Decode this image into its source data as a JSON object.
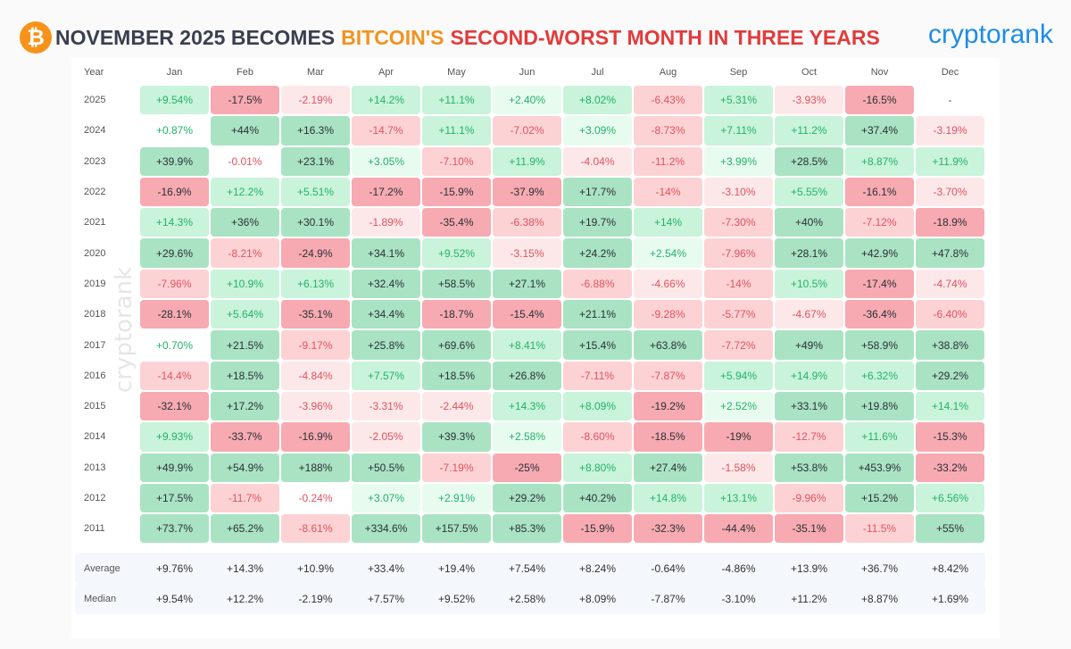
{
  "header": {
    "title_part1": "NOVEMBER 2025 BECOMES",
    "title_part2": "BITCOIN'S",
    "title_part3": "SECOND-WORST MONTH IN THREE YEARS",
    "logo": "cryptorank",
    "watermark": "cryptorank",
    "btc_symbol": "₿"
  },
  "colors": {
    "green": "#22b36a",
    "red": "#e2525e",
    "strong_green": "#a9e3c3",
    "strong_red": "#f7aab1"
  },
  "chart_data": {
    "type": "heatmap",
    "title": "NOVEMBER 2025 BECOMES BITCOIN'S SECOND-WORST MONTH IN THREE YEARS",
    "year_header": "Year",
    "months": [
      "Jan",
      "Feb",
      "Mar",
      "Apr",
      "May",
      "Jun",
      "Jul",
      "Aug",
      "Sep",
      "Oct",
      "Nov",
      "Dec"
    ],
    "rows": [
      {
        "year": "2025",
        "values": [
          "+9.54%",
          "-17.5%",
          "-2.19%",
          "+14.2%",
          "+11.1%",
          "+2.40%",
          "+8.02%",
          "-6.43%",
          "+5.31%",
          "-3.93%",
          "-16.5%",
          "-"
        ]
      },
      {
        "year": "2024",
        "values": [
          "+0.87%",
          "+44%",
          "+16.3%",
          "-14.7%",
          "+11.1%",
          "-7.02%",
          "+3.09%",
          "-8.73%",
          "+7.11%",
          "+11.2%",
          "+37.4%",
          "-3.19%"
        ]
      },
      {
        "year": "2023",
        "values": [
          "+39.9%",
          "-0.01%",
          "+23.1%",
          "+3.05%",
          "-7.10%",
          "+11.9%",
          "-4.04%",
          "-11.2%",
          "+3.99%",
          "+28.5%",
          "+8.87%",
          "+11.9%"
        ]
      },
      {
        "year": "2022",
        "values": [
          "-16.9%",
          "+12.2%",
          "+5.51%",
          "-17.2%",
          "-15.9%",
          "-37.9%",
          "+17.7%",
          "-14%",
          "-3.10%",
          "+5.55%",
          "-16.1%",
          "-3.70%"
        ]
      },
      {
        "year": "2021",
        "values": [
          "+14.3%",
          "+36%",
          "+30.1%",
          "-1.89%",
          "-35.4%",
          "-6.38%",
          "+19.7%",
          "+14%",
          "-7.30%",
          "+40%",
          "-7.12%",
          "-18.9%"
        ]
      },
      {
        "year": "2020",
        "values": [
          "+29.6%",
          "-8.21%",
          "-24.9%",
          "+34.1%",
          "+9.52%",
          "-3.15%",
          "+24.2%",
          "+2.54%",
          "-7.96%",
          "+28.1%",
          "+42.9%",
          "+47.8%"
        ]
      },
      {
        "year": "2019",
        "values": [
          "-7.96%",
          "+10.9%",
          "+6.13%",
          "+32.4%",
          "+58.5%",
          "+27.1%",
          "-6.88%",
          "-4.66%",
          "-14%",
          "+10.5%",
          "-17.4%",
          "-4.74%"
        ]
      },
      {
        "year": "2018",
        "values": [
          "-28.1%",
          "+5.64%",
          "-35.1%",
          "+34.4%",
          "-18.7%",
          "-15.4%",
          "+21.1%",
          "-9.28%",
          "-5.77%",
          "-4.67%",
          "-36.4%",
          "-6.40%"
        ]
      },
      {
        "year": "2017",
        "values": [
          "+0.70%",
          "+21.5%",
          "-9.17%",
          "+25.8%",
          "+69.6%",
          "+8.41%",
          "+15.4%",
          "+63.8%",
          "-7.72%",
          "+49%",
          "+58.9%",
          "+38.8%"
        ]
      },
      {
        "year": "2016",
        "values": [
          "-14.4%",
          "+18.5%",
          "-4.84%",
          "+7.57%",
          "+18.5%",
          "+26.8%",
          "-7.11%",
          "-7.87%",
          "+5.94%",
          "+14.9%",
          "+6.32%",
          "+29.2%"
        ]
      },
      {
        "year": "2015",
        "values": [
          "-32.1%",
          "+17.2%",
          "-3.96%",
          "-3.31%",
          "-2.44%",
          "+14.3%",
          "+8.09%",
          "-19.2%",
          "+2.52%",
          "+33.1%",
          "+19.8%",
          "+14.1%"
        ]
      },
      {
        "year": "2014",
        "values": [
          "+9.93%",
          "-33.7%",
          "-16.9%",
          "-2.05%",
          "+39.3%",
          "+2.58%",
          "-8.60%",
          "-18.5%",
          "-19%",
          "-12.7%",
          "+11.6%",
          "-15.3%"
        ]
      },
      {
        "year": "2013",
        "values": [
          "+49.9%",
          "+54.9%",
          "+188%",
          "+50.5%",
          "-7.19%",
          "-25%",
          "+8.80%",
          "+27.4%",
          "-1.58%",
          "+53.8%",
          "+453.9%",
          "-33.2%"
        ]
      },
      {
        "year": "2012",
        "values": [
          "+17.5%",
          "-11.7%",
          "-0.24%",
          "+3.07%",
          "+2.91%",
          "+29.2%",
          "+40.2%",
          "+14.8%",
          "+13.1%",
          "-9.96%",
          "+15.2%",
          "+6.56%"
        ]
      },
      {
        "year": "2011",
        "values": [
          "+73.7%",
          "+65.2%",
          "-8.61%",
          "+334.6%",
          "+157.5%",
          "+85.3%",
          "-15.9%",
          "-32.3%",
          "-44.4%",
          "-35.1%",
          "-11.5%",
          "+55%"
        ]
      }
    ],
    "stats": [
      {
        "label": "Average",
        "values": [
          "+9.76%",
          "+14.3%",
          "+10.9%",
          "+33.4%",
          "+19.4%",
          "+7.54%",
          "+8.24%",
          "-0.64%",
          "-4.86%",
          "+13.9%",
          "+36.7%",
          "+8.42%"
        ]
      },
      {
        "label": "Median",
        "values": [
          "+9.54%",
          "+12.2%",
          "-2.19%",
          "+7.57%",
          "+9.52%",
          "+2.58%",
          "+8.09%",
          "-7.87%",
          "-3.10%",
          "+11.2%",
          "+8.87%",
          "+1.69%"
        ]
      }
    ]
  }
}
